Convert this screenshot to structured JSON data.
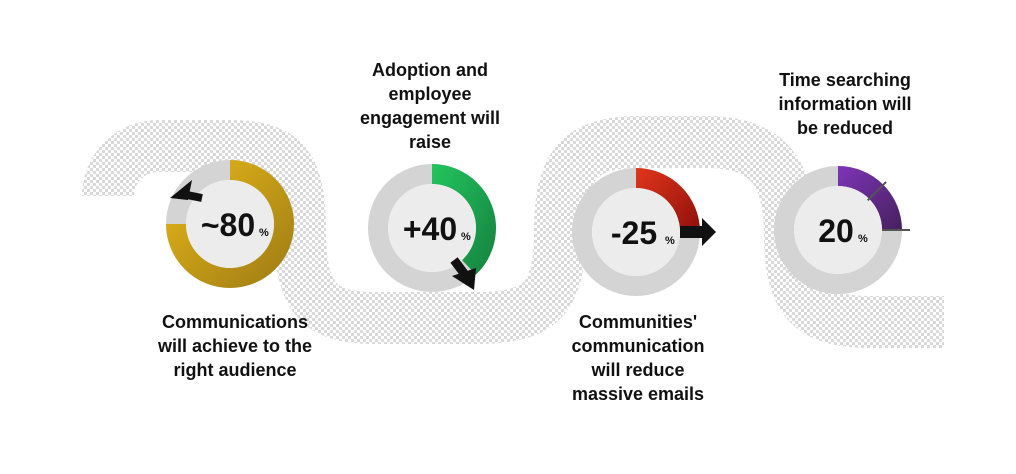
{
  "metrics": [
    {
      "id": "communications",
      "value": "~80",
      "unit": "%",
      "fill_fraction": 0.75,
      "start_angle": 0,
      "color_light": "#e8b91a",
      "color_dark": "#9c7a14",
      "arrow": "up-left",
      "caption": [
        "Communications",
        "will achieve to the",
        "right audience"
      ]
    },
    {
      "id": "adoption",
      "value": "+40",
      "unit": "%",
      "fill_fraction": 0.38,
      "start_angle": 0,
      "color_light": "#22c55e",
      "color_dark": "#15803d",
      "arrow": "down",
      "caption": [
        "Adoption and",
        "employee",
        "engagement will",
        "raise"
      ]
    },
    {
      "id": "emails",
      "value": "-25",
      "unit": "%",
      "fill_fraction": 0.25,
      "start_angle": 0,
      "color_light": "#e0361b",
      "color_dark": "#8e0f0b",
      "arrow": "right",
      "caption": [
        "Communities'",
        "communication",
        "will reduce",
        "massive emails"
      ]
    },
    {
      "id": "searching",
      "value": "20",
      "unit": "%",
      "fill_fraction": 0.25,
      "start_angle": 0,
      "color_light": "#7e34b8",
      "color_dark": "#45215e",
      "arrow": "none",
      "caption": [
        "Time searching",
        "information will",
        "be reduced"
      ]
    }
  ],
  "colors": {
    "ring_track": "#d4d4d4",
    "inner_disc": "#ececec",
    "path_pattern": "#d9d9d9",
    "text": "#111111",
    "arrow": "#111111"
  }
}
